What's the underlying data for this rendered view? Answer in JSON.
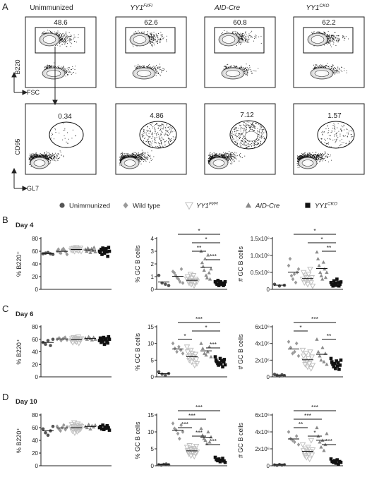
{
  "panel_letters": [
    "A",
    "B",
    "C",
    "D"
  ],
  "flow": {
    "columns": [
      {
        "title": "Unimmunized",
        "sup": ""
      },
      {
        "title": "YY1",
        "sup": "Fl/Fl"
      },
      {
        "title": "AID-Cre",
        "sup": ""
      },
      {
        "title": "YY1",
        "sup": "CKO"
      }
    ],
    "top_row": {
      "ylabel": "B220",
      "xlabel": "FSC",
      "gate_values": [
        "48.6",
        "62.6",
        "60.8",
        "62.2"
      ]
    },
    "bottom_row": {
      "ylabel": "CD95",
      "xlabel": "GL7",
      "gate_values": [
        "0.34",
        "4.86",
        "7.12",
        "1.57"
      ]
    }
  },
  "legend": [
    {
      "label": "Unimmunized",
      "sup": "",
      "marker": "circle",
      "color": "#555555"
    },
    {
      "label": "Wild type",
      "sup": "",
      "marker": "diamond",
      "color": "#9a9a9a"
    },
    {
      "label": "YY1",
      "sup": "Fl/Fl",
      "marker": "triangle-down",
      "color": "#c0c0c0"
    },
    {
      "label": "AID-Cre",
      "sup": "",
      "marker": "triangle-up",
      "color": "#8a8a8a"
    },
    {
      "label": "YY1",
      "sup": "CKO",
      "marker": "square",
      "color": "#111111"
    }
  ],
  "chart_data": [
    {
      "type": "scatter",
      "panel": "B",
      "day": "Day 4",
      "ylabel": "% B220⁺",
      "ylim": [
        0,
        80
      ],
      "yticks": [
        "0",
        "20",
        "40",
        "60",
        "80"
      ],
      "series": [
        {
          "values": [
            56,
            57,
            58,
            56,
            55
          ]
        },
        {
          "values": [
            60,
            63,
            58,
            57,
            62,
            64,
            61,
            59,
            55
          ]
        },
        {
          "values": [
            62,
            64,
            61,
            65,
            60,
            63,
            66,
            62,
            64,
            61,
            63,
            65,
            60
          ]
        },
        {
          "values": [
            63,
            60,
            65,
            62,
            58,
            64,
            61,
            66,
            59
          ]
        },
        {
          "values": [
            60,
            58,
            63,
            55,
            65,
            62,
            57,
            61,
            64,
            59,
            52,
            66,
            60
          ]
        }
      ]
    },
    {
      "type": "scatter",
      "panel": "B",
      "day": "Day 4",
      "ylabel": "% GC B cells",
      "ylim": [
        0,
        4
      ],
      "yticks": [
        "0",
        "1",
        "2",
        "3",
        "4"
      ],
      "significance": [
        {
          "from": 1,
          "to": 4,
          "text": "*"
        },
        {
          "from": 2,
          "to": 4,
          "text": "*"
        },
        {
          "from": 2,
          "to": 3,
          "text": "**"
        },
        {
          "from": 3,
          "to": 4,
          "text": "***"
        }
      ],
      "series": [
        {
          "values": [
            1.1,
            0.5,
            0.4,
            0.3
          ]
        },
        {
          "values": [
            1.4,
            1.3,
            1.1,
            0.9,
            0.8,
            0.6,
            1.6,
            0.5
          ]
        },
        {
          "values": [
            0.8,
            1.0,
            0.6,
            0.5,
            0.7,
            1.2,
            0.4,
            0.9,
            0.6,
            1.1,
            0.3,
            0.5,
            0.8,
            0.7,
            0.6
          ]
        },
        {
          "values": [
            3.0,
            2.1,
            1.8,
            1.5,
            2.4,
            1.1,
            0.9,
            2.7,
            1.3,
            0.8,
            1.6
          ]
        },
        {
          "values": [
            0.6,
            0.5,
            0.4,
            0.7,
            0.3,
            0.5,
            0.6,
            0.4,
            0.5,
            0.3,
            0.4,
            0.6
          ]
        }
      ]
    },
    {
      "type": "scatter",
      "panel": "B",
      "day": "Day 4",
      "ylabel": "# GC B cells",
      "ylim": [
        0,
        1.5
      ],
      "yticks": [
        "0",
        "0.5x10⁶",
        "1.0x10⁶",
        "1.5x10⁶"
      ],
      "significance": [
        {
          "from": 1,
          "to": 4,
          "text": "*"
        },
        {
          "from": 2,
          "to": 4,
          "text": "*"
        },
        {
          "from": 3,
          "to": 4,
          "text": "**"
        }
      ],
      "series": [
        {
          "values": [
            0.15,
            0.1,
            0.12
          ]
        },
        {
          "values": [
            0.7,
            0.9,
            0.4,
            0.3,
            0.45,
            0.2,
            0.5,
            0.6
          ]
        },
        {
          "values": [
            0.3,
            0.5,
            0.2,
            0.4,
            0.25,
            0.35,
            0.15,
            0.45,
            0.3,
            0.6,
            0.2,
            0.35,
            0.1
          ]
        },
        {
          "values": [
            1.1,
            0.9,
            0.7,
            0.5,
            0.4,
            0.3,
            0.8,
            0.6,
            0.35,
            0.5
          ]
        },
        {
          "values": [
            0.2,
            0.15,
            0.1,
            0.25,
            0.18,
            0.12,
            0.3,
            0.2,
            0.1,
            0.15,
            0.22
          ]
        }
      ]
    },
    {
      "type": "scatter",
      "panel": "C",
      "day": "Day 6",
      "ylabel": "% B220⁺",
      "ylim": [
        0,
        80
      ],
      "yticks": [
        "0",
        "20",
        "40",
        "60",
        "80"
      ],
      "series": [
        {
          "values": [
            55,
            52,
            58,
            50,
            60
          ]
        },
        {
          "values": [
            60,
            62,
            58,
            61,
            63,
            59
          ]
        },
        {
          "values": [
            58,
            61,
            55,
            63,
            60,
            57,
            62,
            56,
            59,
            64,
            54,
            60,
            58,
            61
          ]
        },
        {
          "values": [
            62,
            60,
            64,
            61,
            59,
            63,
            60
          ]
        },
        {
          "values": [
            58,
            62,
            55,
            60,
            57,
            63,
            52,
            59,
            61,
            56,
            54,
            64,
            60
          ]
        }
      ]
    },
    {
      "type": "scatter",
      "panel": "C",
      "day": "Day 6",
      "ylabel": "% GC B cells",
      "ylim": [
        0,
        15
      ],
      "yticks": [
        "0",
        "5",
        "10",
        "15"
      ],
      "significance": [
        {
          "from": 1,
          "to": 4,
          "text": "***"
        },
        {
          "from": 2,
          "to": 4,
          "text": "*"
        },
        {
          "from": 1,
          "to": 2,
          "text": "*"
        },
        {
          "from": 3,
          "to": 4,
          "text": "***"
        }
      ],
      "series": [
        {
          "values": [
            1.5,
            0.8,
            0.5,
            1.0
          ]
        },
        {
          "values": [
            10.0,
            8.5,
            7.5,
            9.0,
            8.0,
            7.0
          ]
        },
        {
          "values": [
            9.0,
            7.5,
            6.0,
            5.0,
            6.5,
            8.0,
            4.5,
            7.0,
            5.5,
            6.0,
            3.5,
            6.8,
            5.2,
            4.0
          ]
        },
        {
          "values": [
            10.0,
            8.5,
            7.0,
            6.5,
            7.5,
            9.0,
            6.0
          ]
        },
        {
          "values": [
            6.0,
            5.0,
            4.5,
            4.0,
            3.5,
            4.2,
            5.5,
            3.8,
            4.8,
            3.0,
            4.5,
            5.2,
            3.6
          ]
        }
      ]
    },
    {
      "type": "scatter",
      "panel": "C",
      "day": "Day 6",
      "ylabel": "# GC B cells",
      "ylim": [
        0,
        6
      ],
      "yticks": [
        "0",
        "2x10⁶",
        "4x10⁶",
        "6x10⁶"
      ],
      "significance": [
        {
          "from": 1,
          "to": 4,
          "text": "***"
        },
        {
          "from": 1,
          "to": 2,
          "text": "*"
        },
        {
          "from": 3,
          "to": 4,
          "text": "**"
        }
      ],
      "series": [
        {
          "values": [
            0.3,
            0.2,
            0.1,
            0.25,
            0.15
          ]
        },
        {
          "values": [
            4.2,
            3.5,
            2.8,
            3.0,
            4.0,
            2.5
          ]
        },
        {
          "values": [
            3.2,
            2.5,
            2.0,
            1.5,
            2.8,
            1.8,
            1.2,
            2.2,
            1.6,
            3.0,
            1.0,
            2.4,
            1.4
          ]
        },
        {
          "values": [
            4.5,
            3.0,
            2.5,
            2.0,
            3.5,
            1.8,
            2.8,
            1.5
          ]
        },
        {
          "values": [
            2.2,
            1.8,
            1.5,
            1.2,
            1.6,
            1.0,
            1.9,
            1.3,
            1.7,
            0.9,
            1.4,
            2.0
          ]
        }
      ]
    },
    {
      "type": "scatter",
      "panel": "D",
      "day": "Day 10",
      "ylabel": "% B220⁺",
      "ylim": [
        0,
        80
      ],
      "yticks": [
        "0",
        "20",
        "40",
        "60",
        "80"
      ],
      "series": [
        {
          "values": [
            58,
            52,
            48,
            55,
            62
          ]
        },
        {
          "values": [
            62,
            58,
            55,
            60,
            64,
            57,
            61
          ]
        },
        {
          "values": [
            60,
            65,
            55,
            58,
            62,
            68,
            52,
            57,
            63,
            59,
            54,
            66,
            61,
            56,
            60,
            64,
            58,
            62
          ]
        },
        {
          "values": [
            62,
            60,
            65,
            58,
            63,
            61,
            64
          ]
        },
        {
          "values": [
            60,
            62,
            58,
            64,
            57,
            61,
            59,
            63,
            60,
            56
          ]
        }
      ]
    },
    {
      "type": "scatter",
      "panel": "D",
      "day": "Day 10",
      "ylabel": "% GC B cells",
      "ylim": [
        0,
        15
      ],
      "yticks": [
        "0",
        "5",
        "10",
        "15"
      ],
      "significance": [
        {
          "from": 1,
          "to": 4,
          "text": "***"
        },
        {
          "from": 1,
          "to": 3,
          "text": "***"
        },
        {
          "from": 1,
          "to": 2,
          "text": "***"
        },
        {
          "from": 2,
          "to": 3,
          "text": "***"
        },
        {
          "from": 3,
          "to": 4,
          "text": "***"
        }
      ],
      "series": [
        {
          "values": [
            0.3,
            0.2,
            0.4,
            0.5,
            0.3
          ]
        },
        {
          "values": [
            12.5,
            11.0,
            10.5,
            9.5,
            8.0,
            12.0,
            10.0
          ]
        },
        {
          "values": [
            5.5,
            4.5,
            4.0,
            3.5,
            6.0,
            5.0,
            3.0,
            4.8,
            4.2,
            3.8,
            5.2,
            2.8,
            4.6,
            3.6,
            5.8,
            4.1
          ]
        },
        {
          "values": [
            11.0,
            9.0,
            8.0,
            7.5,
            6.5,
            10.0,
            7.0,
            8.5
          ]
        },
        {
          "values": [
            2.5,
            1.8,
            1.5,
            2.0,
            1.2,
            1.6,
            2.2,
            1.4,
            1.0
          ]
        }
      ]
    },
    {
      "type": "scatter",
      "panel": "D",
      "day": "Day 10",
      "ylabel": "# GC B cells",
      "ylim": [
        0,
        6
      ],
      "yticks": [
        "0",
        "2x10⁶",
        "4x10⁶",
        "6x10⁶"
      ],
      "significance": [
        {
          "from": 1,
          "to": 4,
          "text": "***"
        },
        {
          "from": 1,
          "to": 3,
          "text": "***"
        },
        {
          "from": 1,
          "to": 2,
          "text": "**"
        },
        {
          "from": 2,
          "to": 3,
          "text": "*"
        },
        {
          "from": 3,
          "to": 4,
          "text": "***"
        }
      ],
      "series": [
        {
          "values": [
            0.1,
            0.05,
            0.15,
            0.08,
            0.12
          ]
        },
        {
          "values": [
            4.0,
            3.2,
            3.0,
            2.8,
            3.5,
            2.5
          ]
        },
        {
          "values": [
            2.5,
            1.8,
            1.5,
            1.2,
            2.0,
            1.0,
            1.6,
            2.2,
            1.4,
            0.8,
            1.7,
            3.0,
            1.3,
            1.9
          ]
        },
        {
          "values": [
            4.5,
            3.5,
            2.8,
            2.2,
            3.0,
            1.8,
            2.5,
            3.8
          ]
        },
        {
          "values": [
            0.8,
            0.5,
            0.4,
            0.6,
            0.3,
            0.7,
            0.2,
            0.5,
            0.4
          ]
        }
      ]
    }
  ]
}
